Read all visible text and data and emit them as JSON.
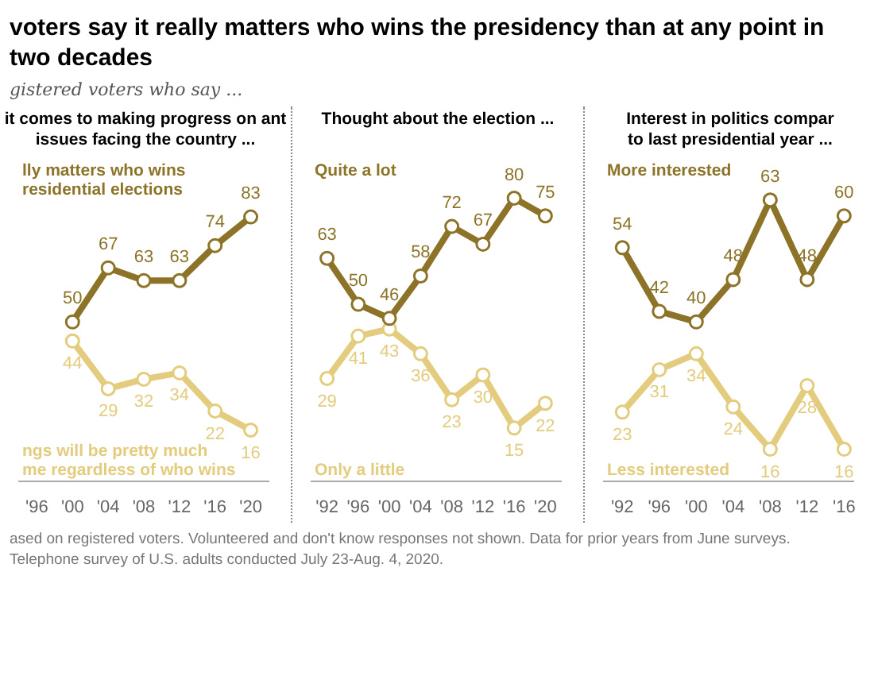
{
  "chart_data": [
    {
      "type": "line",
      "title": "voters say it really matters who wins the presidency than at any point in two decades",
      "subtitle": "gistered voters who say ...",
      "xlabel": "it comes to making progress on ant issues facing the country ...",
      "x": [
        2000,
        2004,
        2008,
        2012,
        2016,
        2020
      ],
      "xlim": [
        1994,
        2022
      ],
      "xticks": [
        {
          "value": 1996,
          "label": "'96"
        },
        {
          "value": 2000,
          "label": "'00"
        },
        {
          "value": 2004,
          "label": "'04"
        },
        {
          "value": 2008,
          "label": "'08"
        },
        {
          "value": 2012,
          "label": "'12"
        },
        {
          "value": 2016,
          "label": "'16"
        },
        {
          "value": 2020,
          "label": "'20"
        }
      ],
      "tick_labels": "x",
      "grid": false,
      "legend": false,
      "marker": "circle",
      "data_labels": true,
      "series": [
        {
          "name": "lly matters who wins\nresidential elections",
          "color": "#8c7328",
          "values": [
            50,
            67,
            63,
            63,
            74,
            83
          ]
        },
        {
          "name": "ngs will be pretty much\nme regardless of who wins",
          "color": "#e3cc7e",
          "values": [
            44,
            29,
            32,
            34,
            22,
            16
          ]
        }
      ]
    },
    {
      "type": "line",
      "xlabel": "Thought about the election ...",
      "x": [
        1992,
        1996,
        2000,
        2004,
        2008,
        2012,
        2016,
        2020
      ],
      "xlim": [
        1990,
        2022
      ],
      "xticks": [
        {
          "value": 1992,
          "label": "'92"
        },
        {
          "value": 1996,
          "label": "'96"
        },
        {
          "value": 2000,
          "label": "'00"
        },
        {
          "value": 2004,
          "label": "'04"
        },
        {
          "value": 2008,
          "label": "'08"
        },
        {
          "value": 2012,
          "label": "'12"
        },
        {
          "value": 2016,
          "label": "'16"
        },
        {
          "value": 2020,
          "label": "'20"
        }
      ],
      "tick_labels": "x",
      "grid": false,
      "legend": false,
      "marker": "circle",
      "data_labels": true,
      "series": [
        {
          "name": "Quite a lot",
          "color": "#8c7328",
          "values": [
            63,
            50,
            46,
            58,
            72,
            67,
            80,
            75
          ]
        },
        {
          "name": "Only a little",
          "color": "#e3cc7e",
          "values": [
            29,
            41,
            43,
            36,
            23,
            30,
            15,
            22
          ]
        }
      ]
    },
    {
      "type": "line",
      "xlabel": "Interest in politics compar\nto last presidential year ...",
      "x": [
        1992,
        1996,
        2000,
        2004,
        2008,
        2012,
        2016
      ],
      "xlim": [
        1990,
        2017
      ],
      "xticks": [
        {
          "value": 1992,
          "label": "'92"
        },
        {
          "value": 1996,
          "label": "'96"
        },
        {
          "value": 2000,
          "label": "'00"
        },
        {
          "value": 2004,
          "label": "'04"
        },
        {
          "value": 2008,
          "label": "'08"
        },
        {
          "value": 2012,
          "label": "'12"
        },
        {
          "value": 2016,
          "label": "'16"
        }
      ],
      "tick_labels": "x",
      "grid": false,
      "legend": false,
      "marker": "circle",
      "data_labels": true,
      "series": [
        {
          "name": "More interested",
          "color": "#8c7328",
          "values": [
            54,
            42,
            40,
            48,
            63,
            48,
            60
          ]
        },
        {
          "name": "Less interested",
          "color": "#e3cc7e",
          "values": [
            23,
            31,
            34,
            24,
            16,
            28,
            16
          ]
        }
      ]
    },
    {
      "type": "other",
      "annotations": [
        "ased on registered voters. Volunteered and don't know responses not shown. Data for prior years from June surveys.",
        "Telephone survey of U.S. adults conducted July 23-Aug. 4, 2020."
      ]
    }
  ]
}
